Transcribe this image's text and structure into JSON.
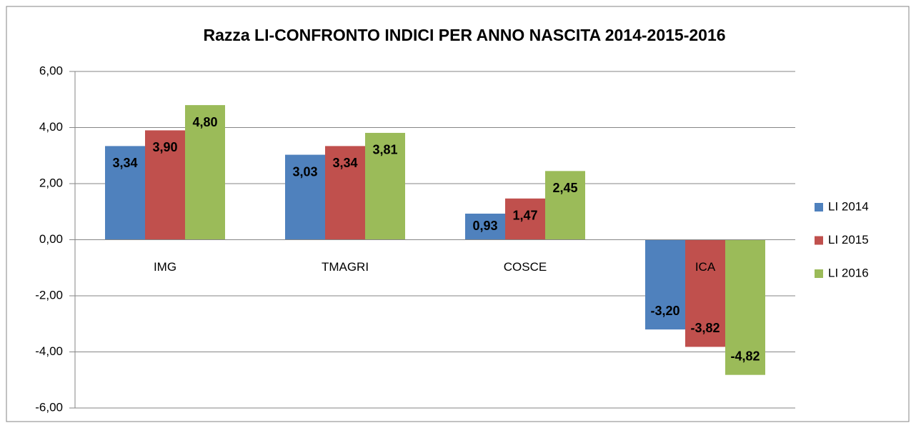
{
  "chart_data": {
    "type": "bar",
    "title": "Razza LI-CONFRONTO INDICI PER ANNO NASCITA 2014-2015-2016",
    "categories": [
      "IMG",
      "TMAGRI",
      "COSCE",
      "ICA"
    ],
    "series": [
      {
        "name": "LI 2014",
        "color": "#4f81bd",
        "values": [
          3.34,
          3.03,
          0.93,
          -3.2
        ],
        "value_labels": [
          "3,34",
          "3,03",
          "0,93",
          "-3,20"
        ]
      },
      {
        "name": "LI 2015",
        "color": "#c0504d",
        "values": [
          3.9,
          3.34,
          1.47,
          -3.82
        ],
        "value_labels": [
          "3,90",
          "3,34",
          "1,47",
          "-3,82"
        ]
      },
      {
        "name": "LI 2016",
        "color": "#9bbb59",
        "values": [
          4.8,
          3.81,
          2.45,
          -4.82
        ],
        "value_labels": [
          "4,80",
          "3,81",
          "2,45",
          "-4,82"
        ]
      }
    ],
    "ylim": [
      -6,
      6
    ],
    "yticks": [
      {
        "value": -6,
        "label": "-6,00"
      },
      {
        "value": -4,
        "label": "-4,00"
      },
      {
        "value": -2,
        "label": "-2,00"
      },
      {
        "value": 0,
        "label": "0,00"
      },
      {
        "value": 2,
        "label": "2,00"
      },
      {
        "value": 4,
        "label": "4,00"
      },
      {
        "value": 6,
        "label": "6,00"
      }
    ],
    "grid": true,
    "legend": "right"
  }
}
